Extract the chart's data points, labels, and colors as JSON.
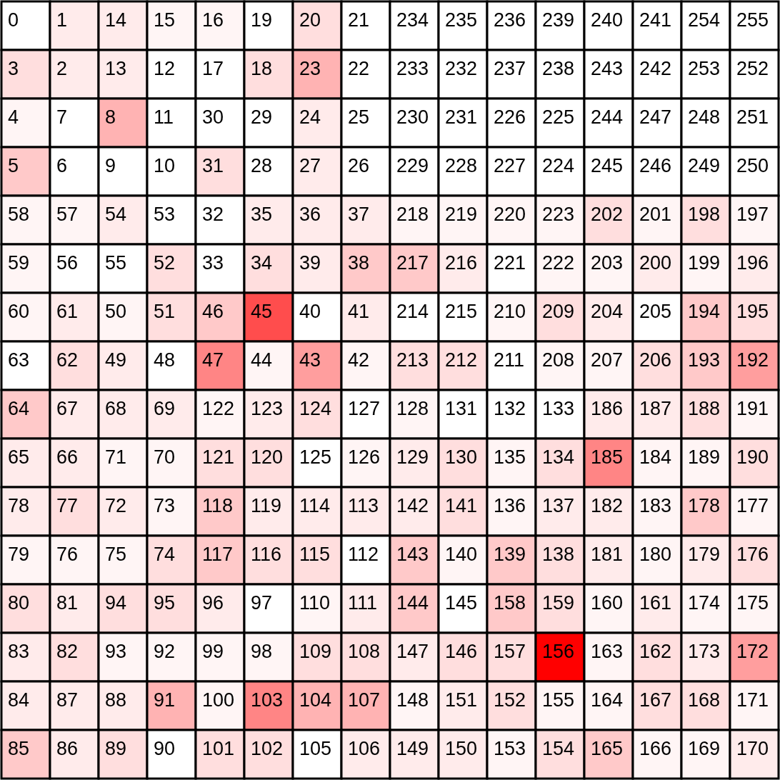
{
  "chart_data": {
    "type": "heatmap",
    "categories": [
      null,
      null,
      null,
      null,
      null,
      null,
      null,
      null,
      null,
      null,
      null,
      null,
      null,
      null,
      null,
      null
    ],
    "y_categories": [
      null,
      null,
      null,
      null,
      null,
      null,
      null,
      null,
      null,
      null,
      null,
      null,
      null,
      null,
      null,
      null
    ],
    "tick_labels": false,
    "data_labels": true,
    "cells": [
      [
        0,
        1,
        14,
        15,
        16,
        19,
        20,
        21,
        234,
        235,
        236,
        239,
        240,
        241,
        254,
        255
      ],
      [
        3,
        2,
        13,
        12,
        17,
        18,
        23,
        22,
        233,
        232,
        237,
        238,
        243,
        242,
        253,
        252
      ],
      [
        4,
        7,
        8,
        11,
        30,
        29,
        24,
        25,
        230,
        231,
        226,
        225,
        244,
        247,
        248,
        251
      ],
      [
        5,
        6,
        9,
        10,
        31,
        28,
        27,
        26,
        229,
        228,
        227,
        224,
        245,
        246,
        249,
        250
      ],
      [
        58,
        57,
        54,
        53,
        32,
        35,
        36,
        37,
        218,
        219,
        220,
        223,
        202,
        201,
        198,
        197
      ],
      [
        59,
        56,
        55,
        52,
        33,
        34,
        39,
        38,
        217,
        216,
        221,
        222,
        203,
        200,
        199,
        196
      ],
      [
        60,
        61,
        50,
        51,
        46,
        45,
        40,
        41,
        214,
        215,
        210,
        209,
        204,
        205,
        194,
        195
      ],
      [
        63,
        62,
        49,
        48,
        47,
        44,
        43,
        42,
        213,
        212,
        211,
        208,
        207,
        206,
        193,
        192
      ],
      [
        64,
        67,
        68,
        69,
        122,
        123,
        124,
        127,
        128,
        131,
        132,
        133,
        186,
        187,
        188,
        191
      ],
      [
        65,
        66,
        71,
        70,
        121,
        120,
        125,
        126,
        129,
        130,
        135,
        134,
        185,
        184,
        189,
        190
      ],
      [
        78,
        77,
        72,
        73,
        118,
        119,
        114,
        113,
        142,
        141,
        136,
        137,
        182,
        183,
        178,
        177
      ],
      [
        79,
        76,
        75,
        74,
        117,
        116,
        115,
        112,
        143,
        140,
        139,
        138,
        181,
        180,
        179,
        176
      ],
      [
        80,
        81,
        94,
        95,
        96,
        97,
        110,
        111,
        144,
        145,
        158,
        159,
        160,
        161,
        174,
        175
      ],
      [
        83,
        82,
        93,
        92,
        99,
        98,
        109,
        108,
        147,
        146,
        157,
        156,
        163,
        162,
        173,
        172
      ],
      [
        84,
        87,
        88,
        91,
        100,
        103,
        104,
        107,
        148,
        151,
        152,
        155,
        164,
        167,
        168,
        171
      ],
      [
        85,
        86,
        89,
        90,
        101,
        102,
        105,
        106,
        149,
        150,
        153,
        154,
        165,
        166,
        169,
        170
      ]
    ],
    "colors": [
      [
        "#ffffff",
        "#ffebeb",
        "#ffebeb",
        "#fff5f5",
        "#fff5f5",
        "#ffffff",
        "#ffdede",
        "#ffffff",
        "#ffffff",
        "#ffffff",
        "#ffffff",
        "#ffffff",
        "#ffffff",
        "#ffffff",
        "#ffffff",
        "#ffffff"
      ],
      [
        "#ffdede",
        "#ffebeb",
        "#ffebeb",
        "#ffffff",
        "#ffffff",
        "#ffdede",
        "#ffb3b3",
        "#ffffff",
        "#ffffff",
        "#ffffff",
        "#ffffff",
        "#ffffff",
        "#ffffff",
        "#ffffff",
        "#ffffff",
        "#ffffff"
      ],
      [
        "#fff5f5",
        "#ffffff",
        "#ffb3b3",
        "#ffffff",
        "#ffffff",
        "#ffffff",
        "#ffebeb",
        "#ffffff",
        "#ffffff",
        "#ffffff",
        "#ffffff",
        "#ffffff",
        "#ffffff",
        "#ffffff",
        "#ffffff",
        "#ffffff"
      ],
      [
        "#ffc9c9",
        "#ffffff",
        "#ffffff",
        "#ffffff",
        "#ffdede",
        "#ffffff",
        "#ffebeb",
        "#ffffff",
        "#ffffff",
        "#ffffff",
        "#ffffff",
        "#ffffff",
        "#ffffff",
        "#ffffff",
        "#ffffff",
        "#ffffff"
      ],
      [
        "#fff5f5",
        "#fff5f5",
        "#ffebeb",
        "#ffffff",
        "#ffffff",
        "#ffebeb",
        "#ffebeb",
        "#ffebeb",
        "#fff5f5",
        "#fff5f5",
        "#fff5f5",
        "#fff5f5",
        "#ffdede",
        "#fff5f5",
        "#ffdede",
        "#fff5f5"
      ],
      [
        "#fff5f5",
        "#ffffff",
        "#ffffff",
        "#ffdede",
        "#ffffff",
        "#ffdede",
        "#ffebeb",
        "#ffc9c9",
        "#ffc9c9",
        "#ffebeb",
        "#ffffff",
        "#fff5f5",
        "#fff5f5",
        "#ffebeb",
        "#fff5f5",
        "#ffebeb"
      ],
      [
        "#fff5f5",
        "#ffebeb",
        "#fff5f5",
        "#ffdede",
        "#ffc9c9",
        "#ff4d4d",
        "#ffffff",
        "#ffebeb",
        "#ffffff",
        "#ffffff",
        "#fff5f5",
        "#ffdede",
        "#ffebeb",
        "#ffffff",
        "#ffc9c9",
        "#ffdede"
      ],
      [
        "#ffffff",
        "#ffdede",
        "#ffebeb",
        "#ffffff",
        "#ff8585",
        "#fff5f5",
        "#ff9e9e",
        "#fff5f5",
        "#ffdede",
        "#ffdede",
        "#ffffff",
        "#fff5f5",
        "#fff5f5",
        "#ffdede",
        "#ffc9c9",
        "#ff9e9e"
      ],
      [
        "#ffc9c9",
        "#ffebeb",
        "#ffebeb",
        "#ffebeb",
        "#fff5f5",
        "#ffebeb",
        "#ffdede",
        "#ffffff",
        "#fff5f5",
        "#ffffff",
        "#ffffff",
        "#ffffff",
        "#ffebeb",
        "#ffebeb",
        "#ffdede",
        "#fff5f5"
      ],
      [
        "#ffebeb",
        "#ffebeb",
        "#fff5f5",
        "#fff5f5",
        "#ffdede",
        "#ffdede",
        "#ffffff",
        "#fff5f5",
        "#ffebeb",
        "#ffdede",
        "#fff5f5",
        "#ffdede",
        "#ff8585",
        "#fff5f5",
        "#fff5f5",
        "#ffdede"
      ],
      [
        "#ffebeb",
        "#ffdede",
        "#ffebeb",
        "#fff5f5",
        "#ffc9c9",
        "#ffebeb",
        "#ffebeb",
        "#ffebeb",
        "#ffebeb",
        "#ffdede",
        "#fff5f5",
        "#ffebeb",
        "#ffebeb",
        "#fff5f5",
        "#ffc9c9",
        "#fff5f5"
      ],
      [
        "#fff5f5",
        "#fff5f5",
        "#fff5f5",
        "#ffdede",
        "#ffc9c9",
        "#ffdede",
        "#ffdede",
        "#ffffff",
        "#ffc9c9",
        "#fff5f5",
        "#ffc9c9",
        "#ffdede",
        "#ffebeb",
        "#fff5f5",
        "#ffebeb",
        "#ffdede"
      ],
      [
        "#ffdede",
        "#ffebeb",
        "#ffdede",
        "#ffdede",
        "#ffebeb",
        "#ffffff",
        "#fff5f5",
        "#ffebeb",
        "#ffc9c9",
        "#ffffff",
        "#ffc9c9",
        "#ffdede",
        "#fff5f5",
        "#ffebeb",
        "#fff5f5",
        "#fff5f5"
      ],
      [
        "#ffebeb",
        "#ffdede",
        "#fff5f5",
        "#fff5f5",
        "#fff5f5",
        "#fff5f5",
        "#ffdede",
        "#ffdede",
        "#ffebeb",
        "#ffdede",
        "#ffdede",
        "#ff0000",
        "#fff5f5",
        "#ffdede",
        "#ffebeb",
        "#ff9e9e"
      ],
      [
        "#ffebeb",
        "#ffebeb",
        "#ffebeb",
        "#ffb3b3",
        "#fff5f5",
        "#ff8585",
        "#ffb3b3",
        "#ffb3b3",
        "#fff5f5",
        "#ffebeb",
        "#ffdede",
        "#fff5f5",
        "#fff5f5",
        "#ffdede",
        "#ffdede",
        "#fff5f5"
      ],
      [
        "#ffc9c9",
        "#ffebeb",
        "#ffdede",
        "#ffffff",
        "#ffdede",
        "#ffdede",
        "#ffffff",
        "#ffebeb",
        "#ffebeb",
        "#ffebeb",
        "#fff5f5",
        "#ffdede",
        "#ffc9c9",
        "#fff5f5",
        "#fff5f5",
        "#ffebeb"
      ]
    ]
  }
}
